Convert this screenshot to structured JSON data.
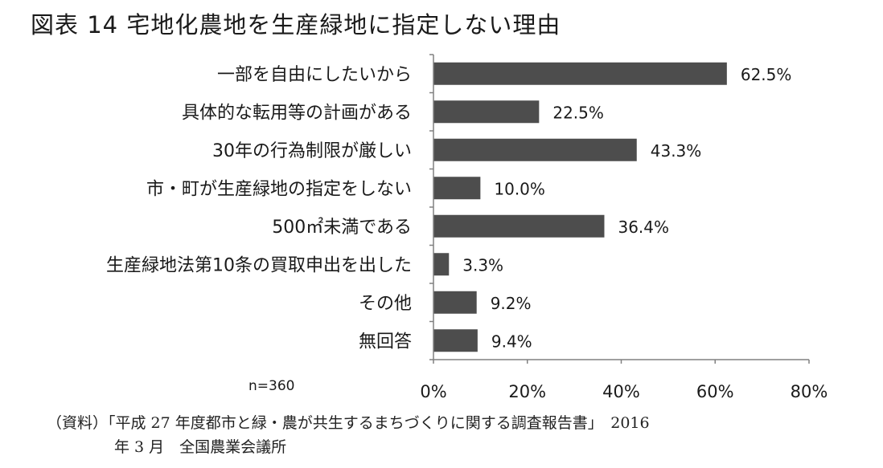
{
  "chart_data": {
    "type": "bar",
    "orientation": "horizontal",
    "title": "図表 14 宅地化農地を生産緑地に指定しない理由",
    "categories": [
      "一部を自由にしたいから",
      "具体的な転用等の計画がある",
      "30年の行為制限が厳しい",
      "市・町が生産緑地の指定をしない",
      "500㎡未満である",
      "生産緑地法第10条の買取申出を出した",
      "その他",
      "無回答"
    ],
    "values": [
      62.5,
      22.5,
      43.3,
      10.0,
      36.4,
      3.3,
      9.2,
      9.4
    ],
    "value_labels": [
      "62.5%",
      "22.5%",
      "43.3%",
      "10.0%",
      "36.4%",
      "3.3%",
      "9.2%",
      "9.4%"
    ],
    "xlim": [
      0,
      80
    ],
    "x_ticks": [
      0,
      20,
      40,
      60,
      80
    ],
    "x_tick_labels": [
      "0%",
      "20%",
      "40%",
      "60%",
      "80%"
    ],
    "bar_color": "#4d4d4d",
    "grid": false,
    "note": "n=360"
  },
  "source": {
    "line1": "（資料）「平成 27 年度都市と緑・農が共生するまちづくりに関する調査報告書」　2016",
    "line2": "年 3 月　全国農業会議所"
  }
}
